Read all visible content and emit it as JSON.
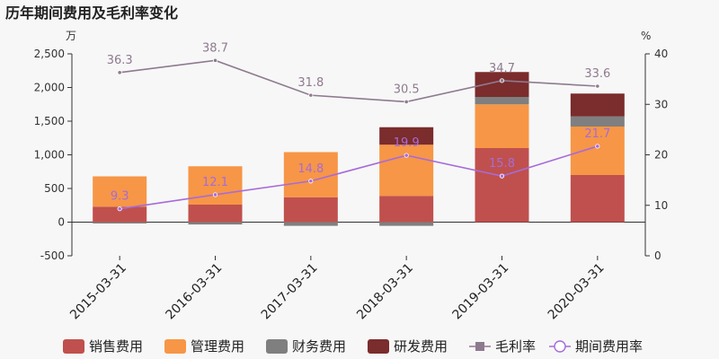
{
  "chart_data": {
    "type": "bar",
    "title": "历年期间费用及毛利率变化",
    "left_unit": "万",
    "right_unit": "%",
    "categories": [
      "2015-03-31",
      "2016-03-31",
      "2017-03-31",
      "2018-03-31",
      "2019-03-31",
      "2020-03-31"
    ],
    "left_ylim": [
      -500,
      2500
    ],
    "left_ticks": [
      "-500",
      "0",
      "500",
      "1,000",
      "1,500",
      "2,000",
      "2,500"
    ],
    "right_ylim": [
      0,
      40
    ],
    "right_ticks": [
      "0",
      "10",
      "20",
      "30",
      "40"
    ],
    "stacked": true,
    "series": [
      {
        "name": "销售费用",
        "kind": "bar",
        "color": "#c0504d",
        "values": [
          230,
          260,
          370,
          390,
          1100,
          700
        ]
      },
      {
        "name": "管理费用",
        "kind": "bar",
        "color": "#f79646",
        "values": [
          450,
          570,
          670,
          760,
          650,
          720
        ]
      },
      {
        "name": "财务费用",
        "kind": "bar",
        "color": "#7f7f7f",
        "values": [
          -20,
          -35,
          -55,
          -55,
          110,
          150
        ]
      },
      {
        "name": "研发费用",
        "kind": "bar",
        "color": "#7b2c2c",
        "values": [
          0,
          0,
          0,
          260,
          370,
          340
        ]
      },
      {
        "name": "毛利率",
        "kind": "line",
        "axis": "right",
        "color": "#8e7a8e",
        "values": [
          36.3,
          38.7,
          31.8,
          30.5,
          34.7,
          33.6
        ],
        "labels": [
          "36.3",
          "38.7",
          "31.8",
          "30.5",
          "34.7",
          "33.6"
        ]
      },
      {
        "name": "期间费用率",
        "kind": "line",
        "axis": "right",
        "color": "#a66bd9",
        "values": [
          9.3,
          12.1,
          14.8,
          19.9,
          15.8,
          21.7
        ],
        "labels": [
          "9.3",
          "12.1",
          "14.8",
          "19.9",
          "15.8",
          "21.7"
        ]
      }
    ],
    "legend_position": "bottom"
  }
}
